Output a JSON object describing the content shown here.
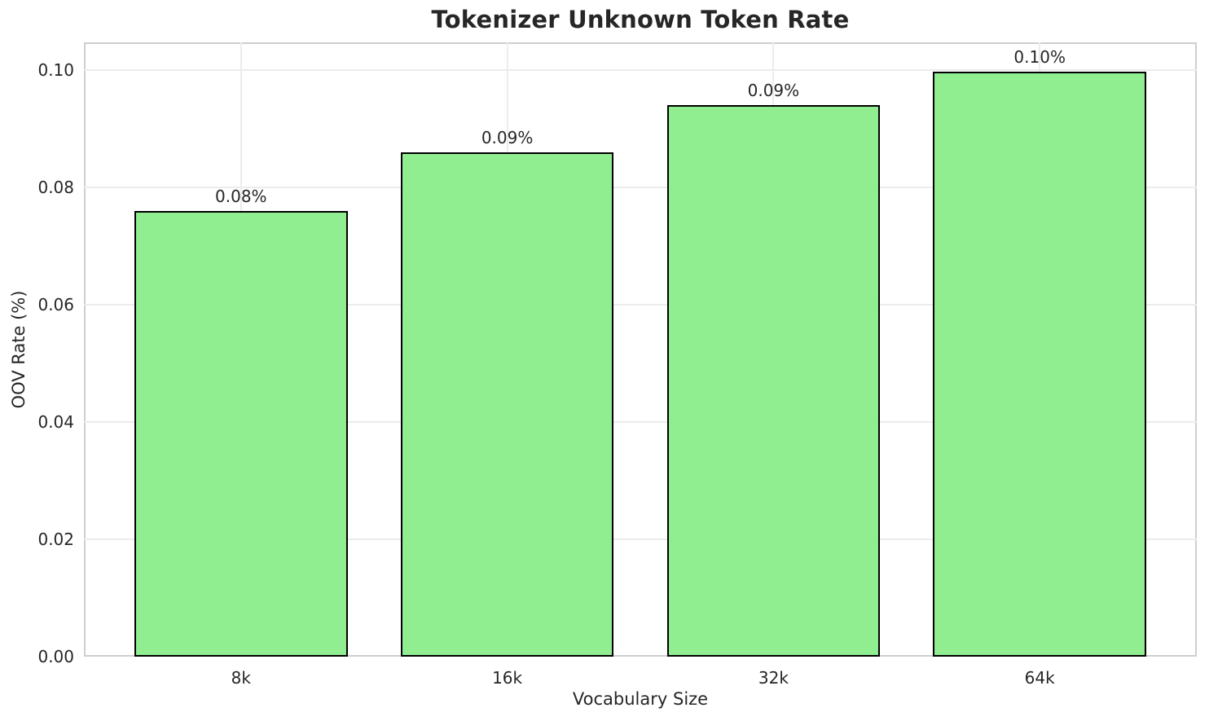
{
  "chart_data": {
    "type": "bar",
    "title": "Tokenizer Unknown Token Rate",
    "xlabel": "Vocabulary Size",
    "ylabel": "OOV Rate (%)",
    "categories": [
      "8k",
      "16k",
      "32k",
      "64k"
    ],
    "values": [
      0.076,
      0.086,
      0.094,
      0.0997
    ],
    "bar_labels": [
      "0.08%",
      "0.09%",
      "0.09%",
      "0.10%"
    ],
    "yticks": [
      0.0,
      0.02,
      0.04,
      0.06,
      0.08,
      0.1
    ],
    "ytick_labels": [
      "0.00",
      "0.02",
      "0.04",
      "0.06",
      "0.08",
      "0.10"
    ],
    "ylim": [
      0,
      0.1047
    ],
    "grid": true,
    "legend_position": "none",
    "colors": {
      "bar_fill": "#90EE90",
      "bar_edge": "#000000",
      "grid": "#ECECEC",
      "spine": "#CFCFCF",
      "text": "#262626",
      "background": "#FFFFFF"
    }
  }
}
